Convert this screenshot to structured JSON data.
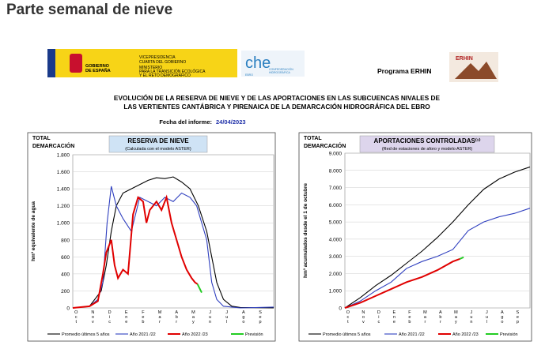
{
  "header": {
    "title": "Parte semanal de nieve"
  },
  "report": {
    "government": [
      "GOBIERNO",
      "DE ESPAÑA"
    ],
    "ministry": [
      "VICEPRESIDENCIA",
      "CUARTA DEL GOBIERNO",
      "MINISTERIO",
      "PARA LA TRANSICIÓN ECOLÓGICA",
      "Y EL RETO DEMOGRÁFICO"
    ],
    "che": {
      "logo": "che",
      "lines": [
        "CONFEDERACIÓN",
        "HIDROGRÁFICA",
        "EBRO"
      ]
    },
    "program": "Programa ERHIN",
    "program_logo": "ERHIN",
    "title": [
      "EVOLUCIÓN DE LA RESERVA DE NIEVE Y DE LAS APORTACIONES EN LAS SUBCUENCAS NIVALES DE",
      "LAS VERTIENTES CANTÁBRICA Y PIRENAICA DE LA DEMARCACIÓN HIDROGRÁFICA DEL EBRO"
    ],
    "date_label": "Fecha del informe:",
    "date": "24/04/2023"
  },
  "chart_data": [
    {
      "type": "line",
      "title": "RESERVA DE NIEVE",
      "subtitle": "(Calculada con el modelo ASTER)",
      "corner_label": [
        "TOTAL",
        "DEMARCACIÓN"
      ],
      "ylabel": "hm³ equivalente de agua",
      "categories": [
        "Oct",
        "Nov",
        "Dic",
        "Ene",
        "Feb",
        "Mar",
        "Abr",
        "May",
        "Jun",
        "Jul",
        "Ago",
        "Sep"
      ],
      "xlim": [
        0,
        12
      ],
      "ylim": [
        0,
        1800
      ],
      "yticks": [
        0,
        200,
        400,
        600,
        800,
        {
          "value": 1000,
          "label": "1.000"
        },
        {
          "value": 1200,
          "label": "1.200"
        },
        {
          "value": 1400,
          "label": "1.400"
        },
        {
          "value": 1600,
          "label": "1.600"
        },
        {
          "value": 1800,
          "label": "1.800"
        }
      ],
      "grid": true,
      "series": [
        {
          "name": "Promedio últimos 5 años",
          "color": "#000000",
          "x": [
            0,
            1,
            1.7,
            2,
            2.3,
            2.6,
            3,
            3.5,
            4,
            4.5,
            5,
            5.5,
            6,
            6.5,
            7,
            7.5,
            8,
            8.3,
            8.6,
            9,
            9.5,
            10,
            12
          ],
          "values": [
            0,
            20,
            200,
            500,
            900,
            1200,
            1350,
            1400,
            1450,
            1500,
            1530,
            1520,
            1540,
            1480,
            1400,
            1200,
            900,
            600,
            300,
            100,
            20,
            5,
            0
          ]
        },
        {
          "name": "Año 2021 /22",
          "color": "#2f3fbf",
          "x": [
            0,
            1,
            1.5,
            1.8,
            2.05,
            2.3,
            2.6,
            3,
            3.5,
            4,
            4.5,
            5,
            5.5,
            6,
            6.5,
            7,
            7.4,
            7.7,
            8,
            8.3,
            8.6,
            9,
            10,
            12
          ],
          "values": [
            0,
            20,
            100,
            300,
            1000,
            1430,
            1200,
            1050,
            900,
            1300,
            1250,
            1200,
            1300,
            1250,
            1350,
            1300,
            1200,
            1000,
            800,
            300,
            100,
            20,
            0,
            10
          ]
        },
        {
          "name": "Año 2022 /23",
          "color": "#e00000",
          "x": [
            0,
            1,
            1.5,
            1.8,
            2,
            2.3,
            2.5,
            2.7,
            3,
            3.3,
            3.6,
            3.9,
            4.2,
            4.4,
            4.6,
            5,
            5.3,
            5.6,
            5.9,
            6.2,
            6.5,
            6.8,
            7.1,
            7.3,
            7.45
          ],
          "values": [
            0,
            20,
            80,
            400,
            650,
            800,
            500,
            350,
            450,
            400,
            1100,
            1300,
            1250,
            1000,
            1150,
            1250,
            1150,
            1300,
            1000,
            800,
            600,
            450,
            350,
            300,
            280
          ]
        },
        {
          "name": "Previsión",
          "color": "#22cc22",
          "x": [
            7.45,
            7.7
          ],
          "values": [
            280,
            180
          ]
        }
      ]
    },
    {
      "type": "line",
      "title": "APORTACIONES CONTROLADAS⁽¹⁾",
      "subtitle": "(Red de estaciones de aforo y modelo ASTER)",
      "corner_label": [
        "TOTAL",
        "DEMARCACIÓN"
      ],
      "ylabel": "hm³ acumulados desde el 1 de octubre",
      "categories": [
        "Oct",
        "Nov",
        "Dic",
        "Ene",
        "Feb",
        "Mar",
        "Abr",
        "May",
        "Jun",
        "Jul",
        "Ago",
        "Sep"
      ],
      "xlim": [
        0,
        12
      ],
      "ylim": [
        0,
        9000
      ],
      "yticks": [
        0,
        {
          "value": 1000,
          "label": "1.000"
        },
        {
          "value": 2000,
          "label": "2.000"
        },
        {
          "value": 3000,
          "label": "3.000"
        },
        {
          "value": 4000,
          "label": "4.000"
        },
        {
          "value": 5000,
          "label": "5.000"
        },
        {
          "value": 6000,
          "label": "6.000"
        },
        {
          "value": 7000,
          "label": "7.000"
        },
        {
          "value": 8000,
          "label": "8.000"
        },
        {
          "value": 9000,
          "label": "9.000"
        }
      ],
      "grid": true,
      "series": [
        {
          "name": "Promedio últimos 5 años",
          "color": "#000000",
          "x": [
            0,
            1,
            2,
            3,
            4,
            5,
            6,
            7,
            8,
            9,
            10,
            11,
            12
          ],
          "values": [
            0,
            600,
            1300,
            1900,
            2600,
            3300,
            4100,
            5000,
            6000,
            6900,
            7500,
            7900,
            8200
          ]
        },
        {
          "name": "Año 2021 /22",
          "color": "#2f3fbf",
          "x": [
            0,
            1,
            2,
            3,
            4,
            5,
            6,
            7,
            8,
            9,
            10,
            11,
            12
          ],
          "values": [
            0,
            400,
            1000,
            1500,
            2300,
            2700,
            3000,
            3400,
            4500,
            5000,
            5300,
            5500,
            5800
          ]
        },
        {
          "name": "Año 2022 /23",
          "color": "#e00000",
          "x": [
            0,
            1,
            2,
            3,
            4,
            5,
            6,
            7,
            7.45
          ],
          "values": [
            0,
            300,
            700,
            1100,
            1500,
            1800,
            2200,
            2700,
            2850
          ]
        },
        {
          "name": "Previsión",
          "color": "#22cc22",
          "x": [
            7.45,
            7.7
          ],
          "values": [
            2850,
            2950
          ]
        }
      ]
    }
  ]
}
